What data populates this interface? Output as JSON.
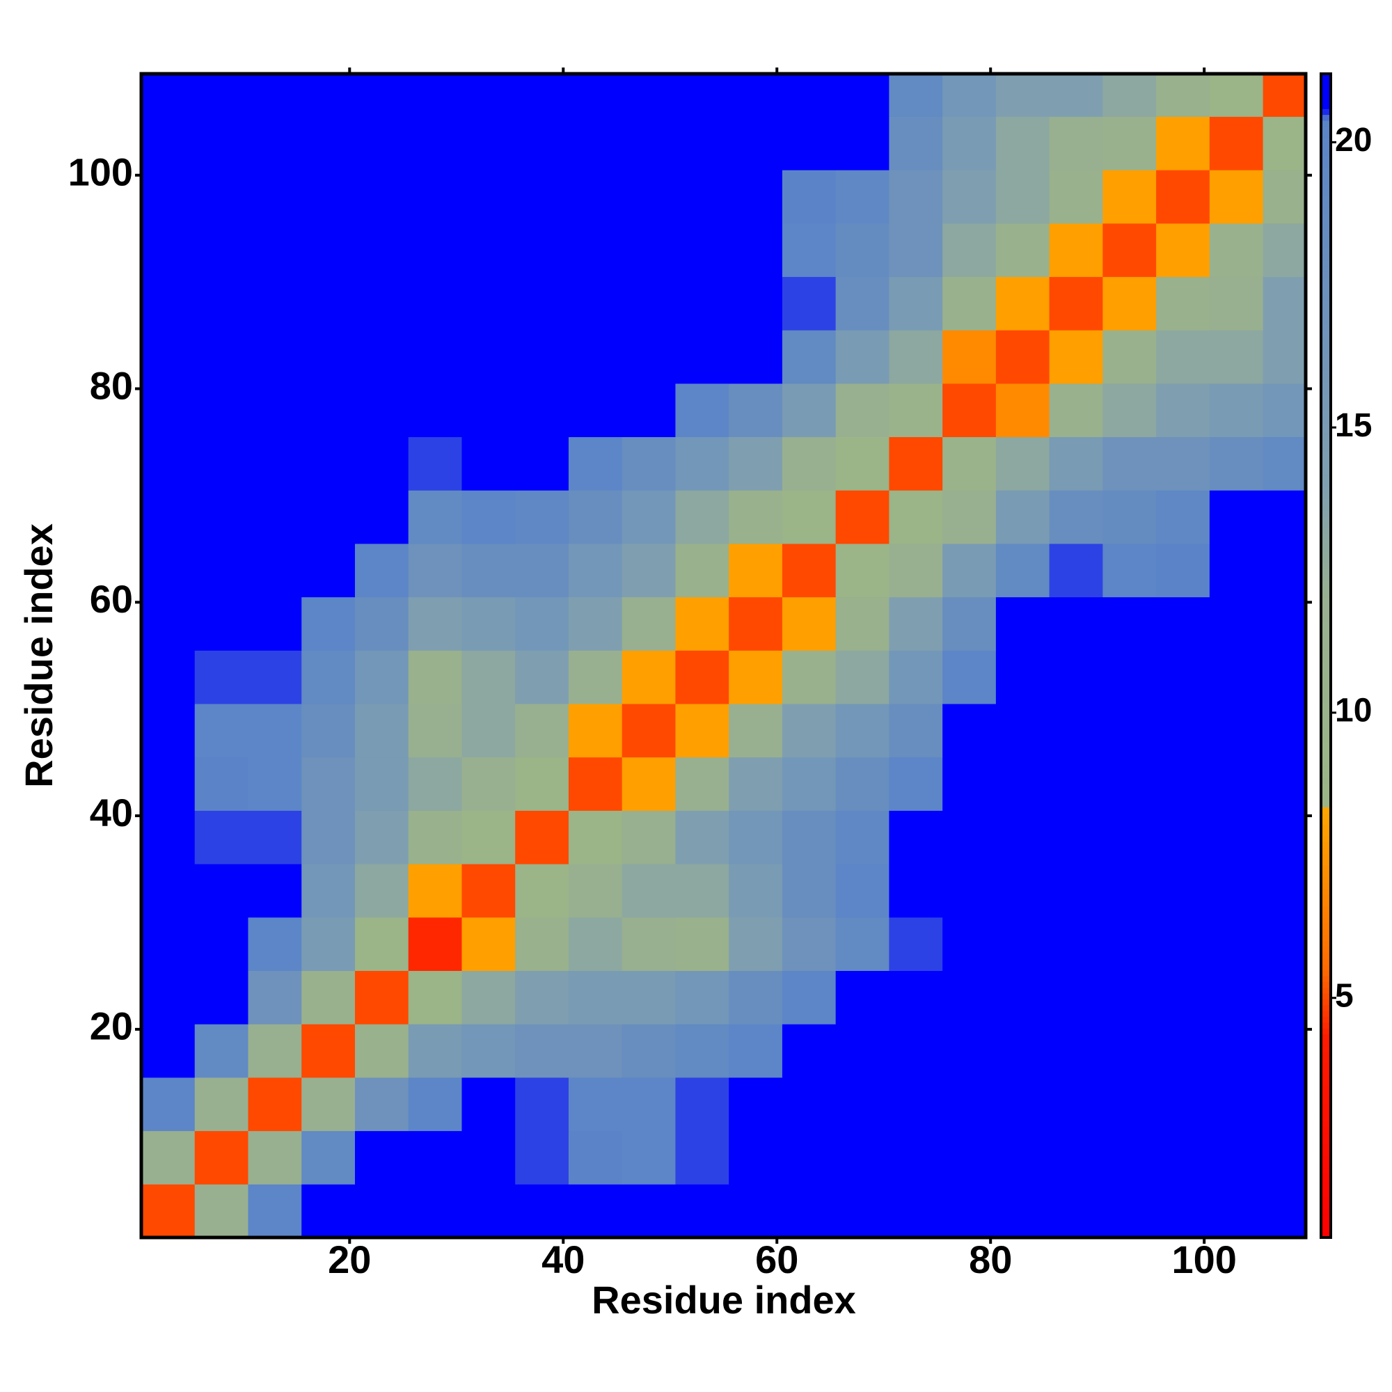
{
  "chart_data": {
    "type": "heatmap",
    "xlabel": "Residue index",
    "ylabel": "Residue index",
    "xlim": [
      0.5,
      109.5
    ],
    "ylim": [
      0.5,
      109.5
    ],
    "xticks": [
      20,
      40,
      60,
      80,
      100
    ],
    "yticks": [
      20,
      40,
      60,
      80,
      100
    ],
    "x_bins": [
      0.5,
      5.5,
      10.5,
      15.5,
      20.5,
      25.5,
      30.5,
      35.5,
      40.5,
      45.5,
      50.5,
      55.5,
      60.5,
      65.5,
      70.5,
      75.5,
      80.5,
      85.5,
      90.5,
      95.5,
      100.5,
      105.5,
      109.5
    ],
    "y_bins": [
      0.5,
      5.5,
      10.5,
      15.5,
      20.5,
      25.5,
      30.5,
      35.5,
      40.5,
      45.5,
      50.5,
      55.5,
      60.5,
      65.5,
      70.5,
      75.5,
      80.5,
      85.5,
      90.5,
      95.5,
      100.5,
      105.5,
      109.5
    ],
    "zlim": [
      0.8,
      21.2
    ],
    "zticks": [
      5,
      10,
      15,
      20
    ],
    "colorscale": [
      {
        "value": 0.8,
        "color": "#ff0000"
      },
      {
        "value": 4.3,
        "color": "#ff1a00"
      },
      {
        "value": 5.5,
        "color": "#ff6a00"
      },
      {
        "value": 8.3,
        "color": "#ffa500"
      },
      {
        "value": 8.35,
        "color": "#9cb586"
      },
      {
        "value": 12,
        "color": "#98b090"
      },
      {
        "value": 14,
        "color": "#7f9fb0"
      },
      {
        "value": 20.4,
        "color": "#5a84c8"
      },
      {
        "value": 20.6,
        "color": "#0000ff"
      },
      {
        "value": 21.2,
        "color": "#0000ff"
      }
    ],
    "z": [
      [
        5,
        12,
        20,
        21.2,
        21.2,
        21.2,
        21.2,
        21.2,
        21.2,
        21.2,
        21.2,
        21.2,
        21.2,
        21.2,
        21.2,
        21.2,
        21.2,
        21.2,
        21.2,
        21.2,
        21.2,
        21.2
      ],
      [
        12,
        5,
        12,
        19,
        21.2,
        21.2,
        21.2,
        20.5,
        20.3,
        20,
        20.5,
        20.8,
        21.2,
        21.2,
        21.2,
        21.2,
        21.2,
        21.2,
        21.2,
        21.2,
        21.2,
        21.2
      ],
      [
        20,
        12,
        5,
        12,
        17,
        20,
        21.2,
        20.5,
        20,
        20,
        20.5,
        21.2,
        21.2,
        21.2,
        21.2,
        21.2,
        21.2,
        21.2,
        21.2,
        21.2,
        21.2,
        21.2
      ],
      [
        21.2,
        19,
        12,
        5,
        11,
        15,
        16,
        17,
        17,
        18,
        19,
        20,
        21.2,
        21.2,
        21.2,
        21.2,
        21.2,
        21.2,
        21.2,
        21.2,
        21.2,
        21.2
      ],
      [
        21.2,
        21.2,
        17,
        11,
        5,
        9,
        13,
        14,
        15,
        15,
        16,
        18,
        20,
        21.2,
        21.2,
        21.2,
        21.2,
        21.2,
        21.2,
        21.2,
        21.2,
        21.2
      ],
      [
        21.2,
        21.2,
        20,
        15,
        9,
        4.5,
        8,
        11,
        13,
        12,
        11,
        14,
        17,
        19,
        20.5,
        21.2,
        21.2,
        21.2,
        21.2,
        21.2,
        21.2,
        21.2
      ],
      [
        21.2,
        21.2,
        21.2,
        16,
        13,
        8,
        5,
        9,
        12,
        13,
        13,
        15,
        18,
        20,
        21,
        21.2,
        21.2,
        21.2,
        21.2,
        21.2,
        21.2,
        21.2
      ],
      [
        21.2,
        20.5,
        20.5,
        17,
        14,
        11,
        9,
        5,
        9,
        12,
        14,
        16,
        18,
        19.5,
        21,
        21.2,
        21.2,
        21.2,
        21.2,
        21.2,
        21.2,
        21.2
      ],
      [
        21.2,
        20.3,
        20,
        17,
        15,
        13,
        12,
        9,
        5,
        8,
        12,
        14,
        16,
        18,
        20,
        21.2,
        21.2,
        21.2,
        21.2,
        21.2,
        21.2,
        21.2
      ],
      [
        21.2,
        20,
        20,
        18,
        15,
        12,
        13,
        12,
        8,
        5,
        8,
        12,
        14,
        16,
        18,
        21,
        21.2,
        21.2,
        21.2,
        21.2,
        21.2,
        21.2
      ],
      [
        21.2,
        20.5,
        20.5,
        19,
        16,
        11,
        13,
        14,
        12,
        8,
        5,
        8,
        11,
        13,
        16,
        20,
        21.2,
        21.2,
        21.2,
        21.2,
        21.2,
        21.2
      ],
      [
        21.2,
        20.8,
        21.2,
        20,
        18,
        14,
        15,
        16,
        14,
        12,
        8,
        5,
        8,
        11,
        14,
        18,
        21,
        20.8,
        20.8,
        21,
        21.2,
        21.2
      ],
      [
        21.2,
        21.2,
        21.2,
        21.2,
        20,
        17,
        18,
        18,
        16,
        14,
        11,
        8,
        5,
        9,
        12,
        15,
        19,
        20.5,
        20,
        20.3,
        21.2,
        21.2
      ],
      [
        21.2,
        21.2,
        21.2,
        21.2,
        21.2,
        19,
        20,
        19.5,
        18,
        16,
        13,
        11,
        9,
        5,
        9,
        12,
        15,
        18,
        18.5,
        19.5,
        21,
        21.2
      ],
      [
        21.2,
        21.2,
        21.2,
        21.2,
        21.2,
        20.5,
        21,
        21,
        20,
        18,
        16,
        14,
        12,
        9,
        5,
        10,
        13,
        15,
        17,
        17,
        18,
        19
      ],
      [
        21.2,
        21.2,
        21.2,
        21.2,
        21.2,
        21.2,
        21.2,
        21.2,
        21.2,
        21,
        20,
        18,
        15,
        12,
        10,
        5,
        7,
        11,
        13,
        14,
        15,
        16
      ],
      [
        21.2,
        21.2,
        21.2,
        21.2,
        21.2,
        21.2,
        21.2,
        21.2,
        21.2,
        21.2,
        21.2,
        21,
        19,
        15,
        13,
        7,
        5,
        8,
        11,
        13,
        13,
        14
      ],
      [
        21.2,
        21.2,
        21.2,
        21.2,
        21.2,
        21.2,
        21.2,
        21.2,
        21.2,
        21.2,
        21.2,
        20.8,
        20.5,
        18,
        15,
        11,
        8,
        5,
        8,
        11,
        12,
        14
      ],
      [
        21.2,
        21.2,
        21.2,
        21.2,
        21.2,
        21.2,
        21.2,
        21.2,
        21.2,
        21.2,
        21.2,
        20.8,
        20,
        18.5,
        17,
        13,
        11,
        8,
        5,
        8,
        11,
        13
      ],
      [
        21.2,
        21.2,
        21.2,
        21.2,
        21.2,
        21.2,
        21.2,
        21.2,
        21.2,
        21.2,
        21.2,
        21,
        20.3,
        19.5,
        17,
        14,
        13,
        11,
        8,
        5,
        8,
        11
      ],
      [
        21.2,
        21.2,
        21.2,
        21.2,
        21.2,
        21.2,
        21.2,
        21.2,
        21.2,
        21.2,
        21.2,
        21.2,
        21.2,
        21,
        18,
        15,
        13,
        12,
        11,
        8,
        5,
        9
      ],
      [
        21.2,
        21.2,
        21.2,
        21.2,
        21.2,
        21.2,
        21.2,
        21.2,
        21.2,
        21.2,
        21.2,
        21.2,
        21.2,
        21.2,
        19,
        16,
        14,
        14,
        13,
        11,
        9,
        5
      ]
    ]
  }
}
